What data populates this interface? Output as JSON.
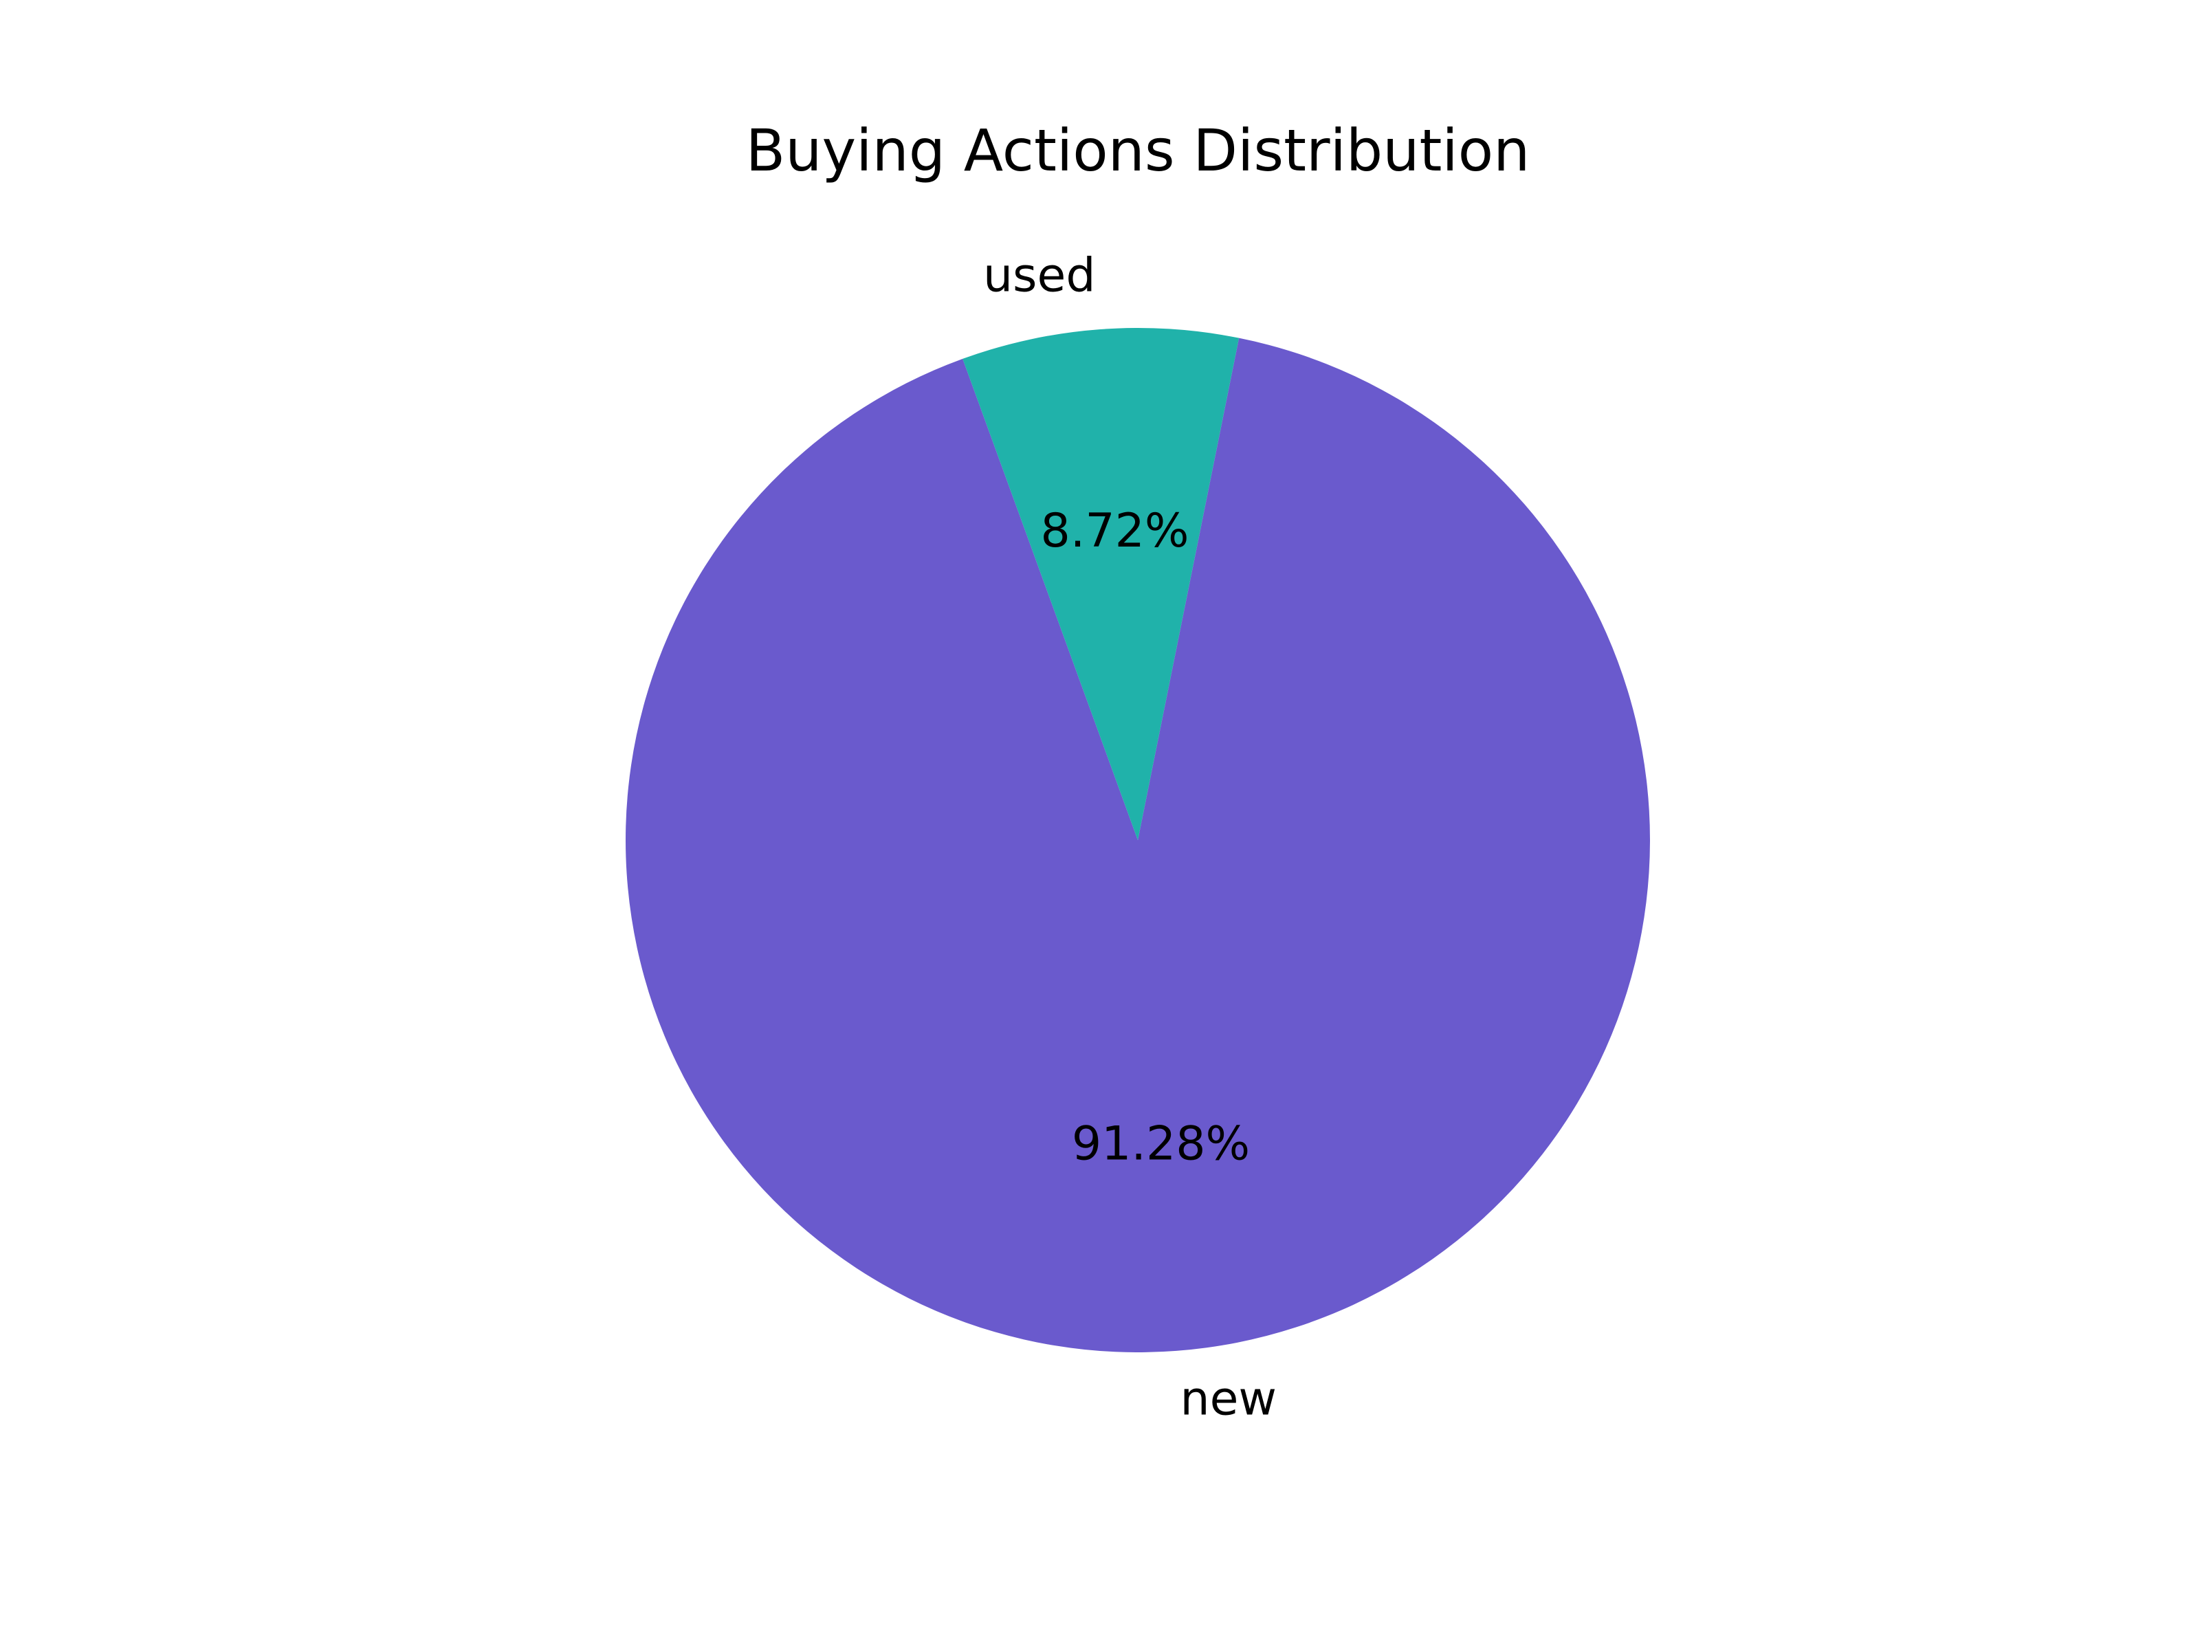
{
  "chart_data": {
    "type": "pie",
    "title": "Buying Actions Distribution",
    "slices": [
      {
        "label": "new",
        "value": 91.28,
        "pct_label": "91.28%",
        "color": "#6a5acd"
      },
      {
        "label": "used",
        "value": 8.72,
        "pct_label": "8.72%",
        "color": "#20b2aa"
      }
    ],
    "start_angle_deg": 110,
    "direction": "counterclockwise"
  }
}
